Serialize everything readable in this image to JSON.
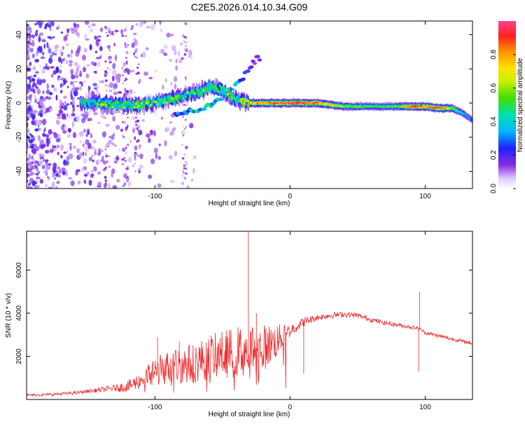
{
  "title": "C2E5.2026.014.10.34.G09",
  "colors": {
    "snr_line": "#ee2a2a",
    "axis": "#000000",
    "spectrum_purple": "#7b2cf5",
    "spectrum_light": "#d9c8f7"
  },
  "chart_data": [
    {
      "type": "heatmap",
      "name": "spectrogram",
      "xlabel": "Height of straight line (km)",
      "ylabel": "Frequency (Hz)",
      "xlim": [
        -195,
        135
      ],
      "ylim": [
        -50,
        48
      ],
      "x_ticks": [
        -100,
        0,
        100
      ],
      "y_ticks": [
        -40,
        -20,
        0,
        20,
        40
      ],
      "colorbar": {
        "label": "Normalized spectral amplitude",
        "range": [
          0,
          1
        ],
        "ticks": [
          "0.0",
          "0.2",
          "0.4",
          "0.6",
          "0.8"
        ],
        "tick_values": [
          0.0,
          0.2,
          0.4,
          0.6,
          0.8
        ]
      },
      "ridge": [
        [
          -152,
          0,
          0.45
        ],
        [
          -140,
          0,
          0.55
        ],
        [
          -130,
          -1,
          0.6
        ],
        [
          -120,
          -1,
          0.55
        ],
        [
          -110,
          -1,
          0.6
        ],
        [
          -100,
          0,
          0.55
        ],
        [
          -90,
          2,
          0.6
        ],
        [
          -80,
          4,
          0.55
        ],
        [
          -70,
          6,
          0.55
        ],
        [
          -60,
          9,
          0.6
        ],
        [
          -50,
          8,
          0.55
        ],
        [
          -40,
          2,
          0.6
        ],
        [
          -30,
          0,
          0.75
        ],
        [
          -20,
          0,
          0.85
        ],
        [
          -10,
          0,
          0.95
        ],
        [
          0,
          0,
          0.9
        ],
        [
          10,
          0,
          0.95
        ],
        [
          20,
          0,
          0.85
        ],
        [
          30,
          -1,
          0.7
        ],
        [
          40,
          -2,
          0.6
        ],
        [
          50,
          -2,
          0.55
        ],
        [
          60,
          -2,
          0.5
        ],
        [
          70,
          -2,
          0.5
        ],
        [
          80,
          -2,
          0.55
        ],
        [
          90,
          -2,
          0.9
        ],
        [
          100,
          -2,
          0.85
        ],
        [
          110,
          -3,
          0.9
        ],
        [
          120,
          -3,
          0.6
        ],
        [
          128,
          -6,
          0.4
        ],
        [
          135,
          -10,
          0.3
        ]
      ],
      "secondary_ridge": [
        [
          -80,
          -6,
          0.4
        ],
        [
          -70,
          -4,
          0.45
        ],
        [
          -60,
          -2,
          0.5
        ],
        [
          -50,
          4,
          0.5
        ],
        [
          -40,
          10,
          0.45
        ],
        [
          -32,
          18,
          0.3
        ],
        [
          -25,
          26,
          0.2
        ]
      ]
    },
    {
      "type": "line",
      "name": "snr",
      "xlabel": "Height of straight line (km)",
      "ylabel": "SNR (10 * v/v)",
      "xlim": [
        -195,
        135
      ],
      "ylim": [
        0,
        7800
      ],
      "x_ticks": [
        -100,
        0,
        100
      ],
      "y_ticks": [
        2000,
        4000,
        6000
      ],
      "envelope": [
        [
          -195,
          200
        ],
        [
          -180,
          220
        ],
        [
          -160,
          300
        ],
        [
          -140,
          450
        ],
        [
          -120,
          600
        ],
        [
          -110,
          900
        ],
        [
          -100,
          1300
        ],
        [
          -90,
          1500
        ],
        [
          -80,
          1600
        ],
        [
          -70,
          1700
        ],
        [
          -60,
          2000
        ],
        [
          -50,
          2100
        ],
        [
          -40,
          2200
        ],
        [
          -30,
          2300
        ],
        [
          -20,
          2400
        ],
        [
          -10,
          2700
        ],
        [
          0,
          3200
        ],
        [
          10,
          3600
        ],
        [
          20,
          3800
        ],
        [
          30,
          3900
        ],
        [
          40,
          3950
        ],
        [
          50,
          3900
        ],
        [
          60,
          3700
        ],
        [
          70,
          3550
        ],
        [
          80,
          3450
        ],
        [
          90,
          3350
        ],
        [
          95,
          3300
        ],
        [
          100,
          3100
        ],
        [
          110,
          2950
        ],
        [
          120,
          2800
        ],
        [
          135,
          2600
        ]
      ],
      "noise": [
        [
          -195,
          60
        ],
        [
          -150,
          80
        ],
        [
          -130,
          150
        ],
        [
          -110,
          400
        ],
        [
          -100,
          700
        ],
        [
          -80,
          900
        ],
        [
          -60,
          1000
        ],
        [
          -40,
          1200
        ],
        [
          -30,
          1300
        ],
        [
          -20,
          1100
        ],
        [
          -10,
          800
        ],
        [
          0,
          300
        ],
        [
          20,
          150
        ],
        [
          60,
          110
        ],
        [
          100,
          90
        ],
        [
          135,
          80
        ]
      ],
      "spikes": [
        {
          "x": -31,
          "y": 7800
        },
        {
          "x": -98,
          "y": 2900
        },
        {
          "x": -82,
          "y": 2700
        },
        {
          "x": -62,
          "y": 2600
        },
        {
          "x": -25,
          "y": 4000
        },
        {
          "x": 96,
          "y": 5000
        },
        {
          "x": 95,
          "y": 1300
        },
        {
          "x": 10,
          "y": 1200
        }
      ]
    }
  ]
}
